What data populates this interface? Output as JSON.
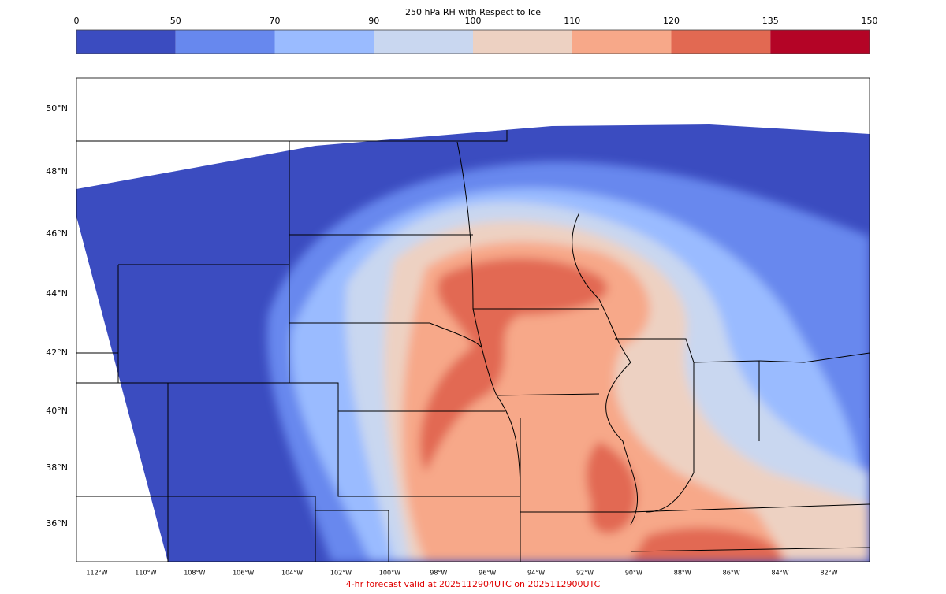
{
  "title": "250 hPa RH with Respect to Ice",
  "colorbar": {
    "ticks": [
      0,
      50,
      70,
      90,
      100,
      110,
      120,
      135,
      150
    ],
    "colors": [
      "#3b4cc0",
      "#6788ee",
      "#9abbff",
      "#c9d7f0",
      "#edd1c2",
      "#f7a889",
      "#e26952",
      "#b40426"
    ]
  },
  "latitude_labels": [
    "50°N",
    "48°N",
    "46°N",
    "44°N",
    "42°N",
    "40°N",
    "38°N",
    "36°N"
  ],
  "longitude_labels": [
    "112°W",
    "110°W",
    "108°W",
    "106°W",
    "104°W",
    "102°W",
    "100°W",
    "98°W",
    "96°W",
    "94°W",
    "92°W",
    "90°W",
    "88°W",
    "86°W",
    "84°W",
    "82°W"
  ],
  "footer": "4-hr forecast valid at 2025112904UTC on 2025112900UTC"
}
